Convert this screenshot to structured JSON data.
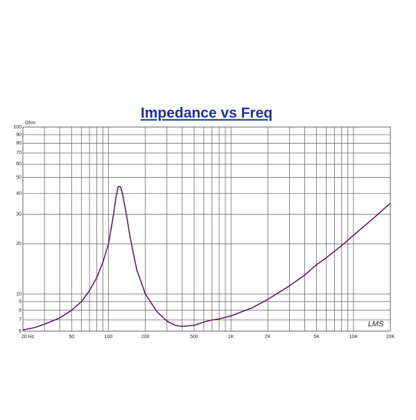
{
  "chart_data": {
    "type": "line",
    "title": "Impedance vs Freq",
    "y_unit": "Ohm",
    "annotation": "LMS",
    "log_x": true,
    "log_y": true,
    "grid": true,
    "x": [
      20,
      25,
      30,
      40,
      50,
      60,
      70,
      80,
      90,
      100,
      110,
      115,
      120,
      125,
      130,
      140,
      150,
      170,
      200,
      250,
      300,
      350,
      400,
      500,
      600,
      700,
      800,
      1000,
      1200,
      1500,
      2000,
      3000,
      4000,
      5000,
      6000,
      8000,
      10000,
      15000,
      20000
    ],
    "series": [
      {
        "name": "Impedance",
        "color": "#5b1a5e",
        "values": [
          6.1,
          6.3,
          6.6,
          7.2,
          8.0,
          9.0,
          10.5,
          12.5,
          15.5,
          20,
          30,
          38,
          44,
          44,
          40,
          30,
          22,
          14,
          10,
          7.8,
          6.9,
          6.5,
          6.4,
          6.5,
          6.8,
          7.0,
          7.1,
          7.4,
          7.8,
          8.3,
          9.3,
          11.2,
          13,
          15,
          16.5,
          19.5,
          22.5,
          29,
          35
        ]
      }
    ],
    "xlim": [
      20,
      20000
    ],
    "xticks": [
      {
        "value": 20,
        "label": "20 Hz"
      },
      50,
      100,
      200,
      500,
      {
        "value": 1000,
        "label": "1K"
      },
      {
        "value": 2000,
        "label": "2K"
      },
      {
        "value": 5000,
        "label": "5K"
      },
      {
        "value": 10000,
        "label": "10K"
      },
      {
        "value": 20000,
        "label": "20K"
      }
    ],
    "xminor_ticks": [
      30,
      40,
      60,
      70,
      80,
      90,
      300,
      400,
      600,
      700,
      800,
      900,
      3000,
      4000,
      6000,
      7000,
      8000,
      9000
    ],
    "ylim": [
      6,
      100
    ],
    "yticks": [
      6,
      7,
      8,
      9,
      10,
      20,
      30,
      40,
      50,
      60,
      70,
      80,
      90,
      100
    ]
  }
}
